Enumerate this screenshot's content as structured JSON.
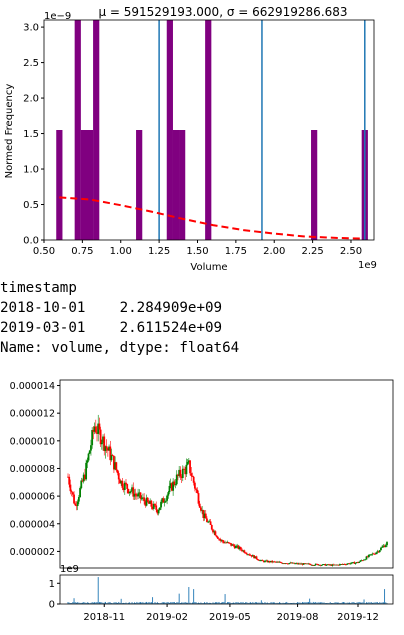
{
  "chart_data": [
    {
      "type": "bar",
      "title": "$\\mu=591529193.000,\\ \\sigma=662919286.683$",
      "title_display": "μ = 591529193.000,  σ = 662919286.683",
      "xlabel": "Volume",
      "ylabel": "Normed Frequency",
      "x_scale_label": "1e9",
      "y_scale_label": "1e−9",
      "xlim": [
        0.5,
        2.65
      ],
      "ylim": [
        0,
        3.1
      ],
      "xticks": [
        "0.50",
        "0.75",
        "1.00",
        "1.25",
        "1.50",
        "1.75",
        "2.00",
        "2.25",
        "2.50"
      ],
      "yticks": [
        "0.0",
        "0.5",
        "1.0",
        "1.5",
        "2.0",
        "2.5",
        "3.0"
      ],
      "bar_color": "#800080",
      "bin_width": 0.0405,
      "bins": [
        {
          "x": 0.6,
          "y": 1.55
        },
        {
          "x": 0.72,
          "y": 3.1
        },
        {
          "x": 0.76,
          "y": 1.55
        },
        {
          "x": 0.8,
          "y": 1.55
        },
        {
          "x": 0.84,
          "y": 3.1
        },
        {
          "x": 1.12,
          "y": 1.55
        },
        {
          "x": 1.32,
          "y": 3.1
        },
        {
          "x": 1.36,
          "y": 1.55
        },
        {
          "x": 1.4,
          "y": 1.55
        },
        {
          "x": 1.57,
          "y": 3.1
        },
        {
          "x": 2.26,
          "y": 1.55
        },
        {
          "x": 2.59,
          "y": 1.55
        }
      ],
      "vlines": [
        1.25,
        1.92,
        2.59
      ],
      "vline_color": "#1f77b4",
      "curve": {
        "color": "#ff0000",
        "style": "dashed",
        "x": [
          0.6,
          0.8,
          1.0,
          1.2,
          1.4,
          1.6,
          1.8,
          2.0,
          2.2,
          2.4,
          2.58
        ],
        "y": [
          0.6,
          0.57,
          0.49,
          0.4,
          0.3,
          0.21,
          0.14,
          0.09,
          0.05,
          0.03,
          0.02
        ]
      }
    },
    {
      "type": "candlestick",
      "y_tick_labels": [
        "0.000002",
        "0.000004",
        "0.000006",
        "0.000008",
        "0.000010",
        "0.000012",
        "0.000014"
      ],
      "y_tick_values": [
        2e-06,
        4e-06,
        6e-06,
        8e-06,
        1e-05,
        1.2e-05,
        1.4e-05
      ],
      "ylim": [
        8e-07,
        1.44e-05
      ],
      "up_color": "#008000",
      "down_color": "#ff0000",
      "x_tick_labels": [
        "2018-11",
        "2019-02",
        "2019-05",
        "2019-08",
        "2019-12"
      ],
      "x_tick_index": [
        30,
        82,
        134,
        190,
        240
      ],
      "n_candles": 265,
      "key_closes": [
        {
          "i": 0,
          "v": 7.4e-06
        },
        {
          "i": 6,
          "v": 5.3e-06
        },
        {
          "i": 14,
          "v": 7.6e-06
        },
        {
          "i": 22,
          "v": 1.11e-05
        },
        {
          "i": 28,
          "v": 1.02e-05
        },
        {
          "i": 36,
          "v": 8.8e-06
        },
        {
          "i": 44,
          "v": 7e-06
        },
        {
          "i": 56,
          "v": 6.1e-06
        },
        {
          "i": 74,
          "v": 5e-06
        },
        {
          "i": 90,
          "v": 7.3e-06
        },
        {
          "i": 100,
          "v": 8.2e-06
        },
        {
          "i": 112,
          "v": 4.6e-06
        },
        {
          "i": 126,
          "v": 2.8e-06
        },
        {
          "i": 140,
          "v": 2.3e-06
        },
        {
          "i": 160,
          "v": 1.3e-06
        },
        {
          "i": 190,
          "v": 1.1e-06
        },
        {
          "i": 220,
          "v": 1e-06
        },
        {
          "i": 240,
          "v": 1.2e-06
        },
        {
          "i": 256,
          "v": 2e-06
        },
        {
          "i": 264,
          "v": 2.6e-06
        }
      ]
    },
    {
      "type": "bar",
      "y_scale_label": "1e9",
      "yticks": [
        "0",
        "1"
      ],
      "ylim": [
        0,
        1.4
      ],
      "bar_color": "#1f77b4",
      "n_bars": 265,
      "key_values": [
        {
          "i": 5,
          "v": 0.28
        },
        {
          "i": 25,
          "v": 1.3
        },
        {
          "i": 44,
          "v": 0.25
        },
        {
          "i": 70,
          "v": 0.33
        },
        {
          "i": 92,
          "v": 0.5
        },
        {
          "i": 100,
          "v": 0.82
        },
        {
          "i": 104,
          "v": 0.72
        },
        {
          "i": 130,
          "v": 0.48
        },
        {
          "i": 160,
          "v": 0.18
        },
        {
          "i": 200,
          "v": 0.26
        },
        {
          "i": 245,
          "v": 0.22
        },
        {
          "i": 262,
          "v": 0.72
        }
      ]
    }
  ],
  "output": {
    "lines": [
      "timestamp",
      "2018-10-01    2.284909e+09",
      "2019-03-01    2.611524e+09",
      "Name: volume, dtype: float64"
    ]
  }
}
